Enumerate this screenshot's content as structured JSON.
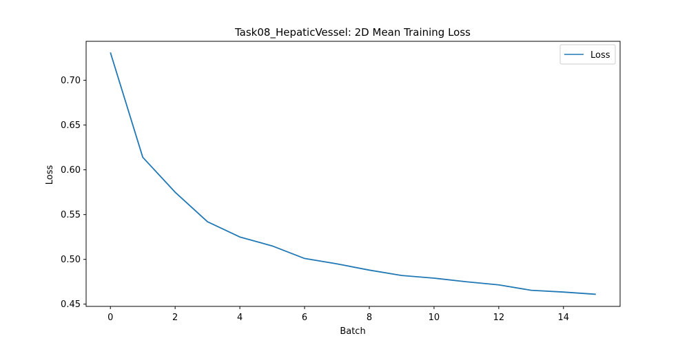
{
  "chart_data": {
    "type": "line",
    "title": "Task08_HepaticVessel: 2D Mean Training Loss",
    "xlabel": "Batch",
    "ylabel": "Loss",
    "xlim": [
      -0.75,
      15.75
    ],
    "ylim": [
      0.4475,
      0.7435
    ],
    "x_ticks": [
      0,
      2,
      4,
      6,
      8,
      10,
      12,
      14
    ],
    "x_tick_labels": [
      "0",
      "2",
      "4",
      "6",
      "8",
      "10",
      "12",
      "14"
    ],
    "y_ticks": [
      0.45,
      0.5,
      0.55,
      0.6,
      0.65,
      0.7
    ],
    "y_tick_labels": [
      "0.45",
      "0.50",
      "0.55",
      "0.60",
      "0.65",
      "0.70"
    ],
    "grid": false,
    "legend_position": "upper right",
    "series": [
      {
        "name": "Loss",
        "color": "#1f77b4",
        "x": [
          0,
          1,
          2,
          3,
          4,
          5,
          6,
          7,
          8,
          9,
          10,
          11,
          12,
          13,
          14,
          15
        ],
        "y": [
          0.731,
          0.614,
          0.575,
          0.542,
          0.525,
          0.515,
          0.501,
          0.495,
          0.488,
          0.482,
          0.479,
          0.475,
          0.4715,
          0.4655,
          0.4635,
          0.461
        ]
      }
    ]
  }
}
